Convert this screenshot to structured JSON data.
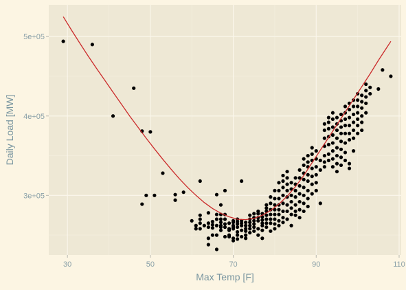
{
  "colors": {
    "page_bg": "#fcf5e3",
    "panel_bg": "#eee8d5",
    "grid_major": "#fbf7ec",
    "grid_minor": "#f4efe0",
    "point": "#000000",
    "fit_line": "#cb2b2b",
    "text": "#7a96a0"
  },
  "chart_data": {
    "type": "scatter",
    "title": "",
    "xlabel": "Max Temp [F]",
    "ylabel": "Daily Load [MW]",
    "xlim": [
      25.5,
      110.5
    ],
    "ylim": [
      225000,
      540000
    ],
    "x_ticks": [
      30,
      50,
      70,
      90,
      110
    ],
    "x_tick_labels": [
      "30",
      "50",
      "70",
      "90",
      "110"
    ],
    "y_ticks": [
      300000,
      400000,
      500000
    ],
    "y_tick_labels": [
      "3e+05",
      "4e+05",
      "5e+05"
    ],
    "grid": true,
    "legend": "none",
    "series": [
      {
        "kind": "points",
        "points": [
          [
            29,
            494000
          ],
          [
            36,
            490000
          ],
          [
            41,
            400000
          ],
          [
            46,
            435000
          ],
          [
            48,
            381000
          ],
          [
            48,
            289000
          ],
          [
            49,
            300000
          ],
          [
            50,
            380000
          ],
          [
            51,
            300000
          ],
          [
            53,
            328000
          ],
          [
            56,
            301000
          ],
          [
            56,
            294000
          ],
          [
            58,
            304000
          ],
          [
            60,
            268000
          ],
          [
            61,
            262000
          ],
          [
            61,
            258000
          ],
          [
            62,
            318000
          ],
          [
            62,
            275000
          ],
          [
            62,
            270000
          ],
          [
            62,
            265000
          ],
          [
            62,
            258000
          ],
          [
            63,
            262000
          ],
          [
            64,
            278000
          ],
          [
            64,
            265000
          ],
          [
            64,
            260000
          ],
          [
            64,
            246000
          ],
          [
            64,
            238000
          ],
          [
            65,
            267000
          ],
          [
            65,
            263000
          ],
          [
            65,
            259000
          ],
          [
            65,
            250000
          ],
          [
            66,
            301000
          ],
          [
            66,
            276000
          ],
          [
            66,
            270000
          ],
          [
            66,
            262000
          ],
          [
            66,
            250000
          ],
          [
            66,
            232000
          ],
          [
            67,
            288000
          ],
          [
            67,
            276000
          ],
          [
            67,
            270000
          ],
          [
            67,
            266000
          ],
          [
            67,
            262000
          ],
          [
            67,
            260000
          ],
          [
            67,
            256000
          ],
          [
            68,
            306000
          ],
          [
            68,
            276000
          ],
          [
            68,
            270000
          ],
          [
            68,
            264000
          ],
          [
            68,
            260000
          ],
          [
            68,
            248000
          ],
          [
            69,
            265000
          ],
          [
            69,
            258000
          ],
          [
            69,
            256000
          ],
          [
            69,
            250000
          ],
          [
            69,
            248000
          ],
          [
            70,
            268000
          ],
          [
            70,
            266000
          ],
          [
            70,
            262000
          ],
          [
            70,
            260000
          ],
          [
            70,
            258000
          ],
          [
            70,
            246000
          ],
          [
            70,
            243000
          ],
          [
            71,
            270000
          ],
          [
            71,
            267000
          ],
          [
            71,
            264000
          ],
          [
            71,
            260000
          ],
          [
            71,
            254000
          ],
          [
            71,
            250000
          ],
          [
            71,
            245000
          ],
          [
            72,
            318000
          ],
          [
            72,
            268000
          ],
          [
            72,
            265000
          ],
          [
            72,
            262000
          ],
          [
            72,
            256000
          ],
          [
            72,
            248000
          ],
          [
            73,
            266000
          ],
          [
            73,
            262000
          ],
          [
            73,
            258000
          ],
          [
            73,
            255000
          ],
          [
            73,
            250000
          ],
          [
            73,
            246000
          ],
          [
            74,
            275000
          ],
          [
            74,
            270000
          ],
          [
            74,
            266000
          ],
          [
            74,
            262000
          ],
          [
            74,
            258000
          ],
          [
            74,
            253000
          ],
          [
            75,
            277000
          ],
          [
            75,
            272000
          ],
          [
            75,
            268000
          ],
          [
            75,
            264000
          ],
          [
            75,
            260000
          ],
          [
            75,
            255000
          ],
          [
            76,
            280000
          ],
          [
            76,
            277000
          ],
          [
            76,
            272000
          ],
          [
            76,
            268000
          ],
          [
            76,
            258000
          ],
          [
            76,
            250000
          ],
          [
            77,
            277000
          ],
          [
            77,
            273000
          ],
          [
            77,
            269000
          ],
          [
            77,
            265000
          ],
          [
            77,
            262000
          ],
          [
            77,
            256000
          ],
          [
            77,
            246000
          ],
          [
            78,
            288000
          ],
          [
            78,
            284000
          ],
          [
            78,
            280000
          ],
          [
            78,
            275000
          ],
          [
            78,
            270000
          ],
          [
            78,
            265000
          ],
          [
            78,
            260000
          ],
          [
            79,
            298000
          ],
          [
            79,
            290000
          ],
          [
            79,
            282000
          ],
          [
            79,
            276000
          ],
          [
            79,
            270000
          ],
          [
            79,
            265000
          ],
          [
            79,
            255000
          ],
          [
            80,
            306000
          ],
          [
            80,
            296000
          ],
          [
            80,
            288000
          ],
          [
            80,
            282000
          ],
          [
            80,
            276000
          ],
          [
            80,
            270000
          ],
          [
            80,
            264000
          ],
          [
            80,
            258000
          ],
          [
            81,
            316000
          ],
          [
            81,
            306000
          ],
          [
            81,
            296000
          ],
          [
            81,
            288000
          ],
          [
            81,
            282000
          ],
          [
            81,
            276000
          ],
          [
            81,
            268000
          ],
          [
            81,
            262000
          ],
          [
            82,
            325000
          ],
          [
            82,
            318000
          ],
          [
            82,
            310000
          ],
          [
            82,
            300000
          ],
          [
            82,
            290000
          ],
          [
            82,
            280000
          ],
          [
            82,
            272000
          ],
          [
            82,
            266000
          ],
          [
            83,
            330000
          ],
          [
            83,
            322000
          ],
          [
            83,
            314000
          ],
          [
            83,
            306000
          ],
          [
            83,
            298000
          ],
          [
            83,
            288000
          ],
          [
            83,
            280000
          ],
          [
            83,
            270000
          ],
          [
            84,
            316000
          ],
          [
            84,
            308000
          ],
          [
            84,
            300000
          ],
          [
            84,
            292000
          ],
          [
            84,
            284000
          ],
          [
            84,
            276000
          ],
          [
            84,
            262000
          ],
          [
            85,
            322000
          ],
          [
            85,
            314000
          ],
          [
            85,
            306000
          ],
          [
            85,
            298000
          ],
          [
            85,
            288000
          ],
          [
            85,
            280000
          ],
          [
            85,
            275000
          ],
          [
            86,
            332000
          ],
          [
            86,
            322000
          ],
          [
            86,
            312000
          ],
          [
            86,
            302000
          ],
          [
            86,
            292000
          ],
          [
            86,
            282000
          ],
          [
            86,
            272000
          ],
          [
            87,
            346000
          ],
          [
            87,
            338000
          ],
          [
            87,
            328000
          ],
          [
            87,
            320000
          ],
          [
            87,
            310000
          ],
          [
            87,
            300000
          ],
          [
            87,
            290000
          ],
          [
            87,
            280000
          ],
          [
            88,
            350000
          ],
          [
            88,
            342000
          ],
          [
            88,
            336000
          ],
          [
            88,
            326000
          ],
          [
            88,
            318000
          ],
          [
            88,
            306000
          ],
          [
            88,
            296000
          ],
          [
            88,
            286000
          ],
          [
            89,
            360000
          ],
          [
            89,
            352000
          ],
          [
            89,
            344000
          ],
          [
            89,
            334000
          ],
          [
            89,
            324000
          ],
          [
            89,
            314000
          ],
          [
            89,
            302000
          ],
          [
            90,
            356000
          ],
          [
            90,
            346000
          ],
          [
            90,
            336000
          ],
          [
            90,
            326000
          ],
          [
            90,
            316000
          ],
          [
            90,
            306000
          ],
          [
            91,
            290000
          ],
          [
            91,
            332000
          ],
          [
            91,
            344000
          ],
          [
            92,
            390000
          ],
          [
            92,
            382000
          ],
          [
            92,
            372000
          ],
          [
            92,
            362000
          ],
          [
            92,
            350000
          ],
          [
            92,
            342000
          ],
          [
            92,
            336000
          ],
          [
            93,
            398000
          ],
          [
            93,
            392000
          ],
          [
            93,
            384000
          ],
          [
            93,
            374000
          ],
          [
            93,
            364000
          ],
          [
            93,
            352000
          ],
          [
            93,
            344000
          ],
          [
            94,
            404000
          ],
          [
            94,
            396000
          ],
          [
            94,
            386000
          ],
          [
            94,
            376000
          ],
          [
            94,
            366000
          ],
          [
            94,
            356000
          ],
          [
            94,
            346000
          ],
          [
            94,
            336000
          ],
          [
            95,
            398000
          ],
          [
            95,
            390000
          ],
          [
            95,
            382000
          ],
          [
            95,
            372000
          ],
          [
            95,
            360000
          ],
          [
            95,
            350000
          ],
          [
            95,
            340000
          ],
          [
            95,
            330000
          ],
          [
            96,
            402000
          ],
          [
            96,
            394000
          ],
          [
            96,
            386000
          ],
          [
            96,
            378000
          ],
          [
            96,
            368000
          ],
          [
            96,
            358000
          ],
          [
            96,
            348000
          ],
          [
            96,
            338000
          ],
          [
            97,
            412000
          ],
          [
            97,
            404000
          ],
          [
            97,
            396000
          ],
          [
            97,
            388000
          ],
          [
            97,
            378000
          ],
          [
            97,
            366000
          ],
          [
            97,
            354000
          ],
          [
            97,
            344000
          ],
          [
            98,
            416000
          ],
          [
            98,
            408000
          ],
          [
            98,
            398000
          ],
          [
            98,
            388000
          ],
          [
            98,
            378000
          ],
          [
            98,
            370000
          ],
          [
            98,
            340000
          ],
          [
            98,
            334000
          ],
          [
            99,
            420000
          ],
          [
            99,
            412000
          ],
          [
            99,
            402000
          ],
          [
            99,
            392000
          ],
          [
            99,
            382000
          ],
          [
            99,
            372000
          ],
          [
            99,
            356000
          ],
          [
            100,
            428000
          ],
          [
            100,
            420000
          ],
          [
            100,
            412000
          ],
          [
            100,
            404000
          ],
          [
            100,
            396000
          ],
          [
            100,
            388000
          ],
          [
            100,
            378000
          ],
          [
            101,
            426000
          ],
          [
            101,
            418000
          ],
          [
            101,
            410000
          ],
          [
            101,
            400000
          ],
          [
            101,
            392000
          ],
          [
            101,
            382000
          ],
          [
            102,
            440000
          ],
          [
            102,
            432000
          ],
          [
            102,
            424000
          ],
          [
            102,
            416000
          ],
          [
            102,
            404000
          ],
          [
            103,
            428000
          ],
          [
            103,
            436000
          ],
          [
            105,
            434000
          ],
          [
            106,
            458000
          ],
          [
            108,
            450000
          ]
        ]
      },
      {
        "kind": "fit_line",
        "x": [
          29,
          31,
          33,
          35,
          37,
          39,
          41,
          43,
          45,
          47,
          49,
          51,
          53,
          55,
          57,
          59,
          61,
          63,
          65,
          67,
          69,
          71,
          73,
          75,
          77,
          79,
          81,
          83,
          85,
          87,
          89,
          91,
          93,
          95,
          97,
          99,
          101,
          103,
          105,
          107,
          108
        ],
        "values": [
          525000,
          508000,
          491500,
          475500,
          460000,
          445000,
          430000,
          415000,
          400000,
          386000,
          372000,
          358500,
          345500,
          333000,
          321000,
          310000,
          300000,
          291000,
          283500,
          277500,
          273000,
          270000,
          269500,
          271000,
          275000,
          281000,
          289000,
          299000,
          311000,
          325000,
          341000,
          357000,
          373000,
          389000,
          405000,
          421000,
          437000,
          453000,
          470000,
          486000,
          494000
        ]
      }
    ]
  }
}
